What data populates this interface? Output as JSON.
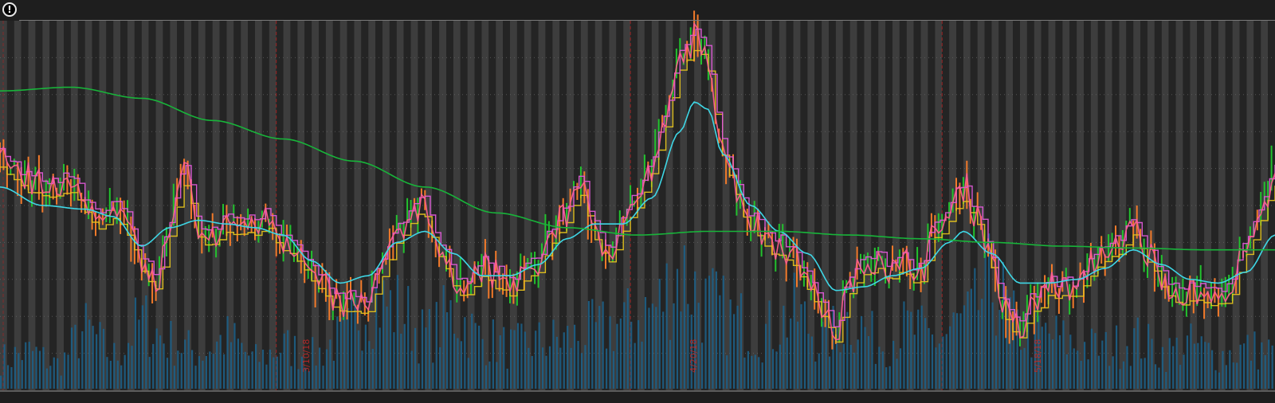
{
  "info_glyph": "!",
  "chart_data": {
    "type": "line",
    "title": "",
    "xlabel": "",
    "ylabel": "",
    "grid": true,
    "legend": "none",
    "date_markers": [
      "3/10/18",
      "4/20/18",
      "5/18/18"
    ],
    "colors": {
      "background": "#1e1e1e",
      "day_band_light": "#3d3d3d",
      "day_band_dark": "#242424",
      "price_green": "#22c22e",
      "price_orange": "#f27a2a",
      "price_pink": "#ff5f8f",
      "ma_magenta": "#e05ad8",
      "ma_yellow": "#e4c21c",
      "ma_cyan": "#3ed7e6",
      "ma_long_green": "#18b43a",
      "volume": "#1d5f86",
      "date_marker": "#b12020"
    },
    "x_range": [
      0,
      180
    ],
    "y_range": [
      0,
      100
    ],
    "price_keypoints": [
      [
        0,
        62
      ],
      [
        2,
        58
      ],
      [
        4,
        57
      ],
      [
        6,
        55
      ],
      [
        8,
        57
      ],
      [
        10,
        55
      ],
      [
        12,
        50
      ],
      [
        14,
        47
      ],
      [
        16,
        51
      ],
      [
        18,
        45
      ],
      [
        20,
        35
      ],
      [
        22,
        28
      ],
      [
        24,
        42
      ],
      [
        26,
        60
      ],
      [
        28,
        44
      ],
      [
        30,
        40
      ],
      [
        32,
        46
      ],
      [
        34,
        44
      ],
      [
        36,
        45
      ],
      [
        38,
        47
      ],
      [
        40,
        41
      ],
      [
        42,
        39
      ],
      [
        44,
        31
      ],
      [
        46,
        27
      ],
      [
        48,
        23
      ],
      [
        50,
        24
      ],
      [
        52,
        22
      ],
      [
        54,
        34
      ],
      [
        56,
        41
      ],
      [
        58,
        48
      ],
      [
        60,
        52
      ],
      [
        62,
        37
      ],
      [
        64,
        30
      ],
      [
        66,
        29
      ],
      [
        68,
        33
      ],
      [
        70,
        31
      ],
      [
        72,
        28
      ],
      [
        74,
        31
      ],
      [
        76,
        34
      ],
      [
        78,
        43
      ],
      [
        80,
        48
      ],
      [
        82,
        58
      ],
      [
        84,
        41
      ],
      [
        86,
        38
      ],
      [
        88,
        46
      ],
      [
        90,
        52
      ],
      [
        92,
        59
      ],
      [
        94,
        72
      ],
      [
        96,
        90
      ],
      [
        98,
        95
      ],
      [
        100,
        89
      ],
      [
        102,
        67
      ],
      [
        104,
        55
      ],
      [
        106,
        46
      ],
      [
        108,
        42
      ],
      [
        110,
        40
      ],
      [
        112,
        36
      ],
      [
        114,
        32
      ],
      [
        116,
        22
      ],
      [
        118,
        15
      ],
      [
        120,
        29
      ],
      [
        122,
        33
      ],
      [
        124,
        37
      ],
      [
        126,
        32
      ],
      [
        128,
        34
      ],
      [
        130,
        33
      ],
      [
        132,
        42
      ],
      [
        134,
        48
      ],
      [
        136,
        55
      ],
      [
        138,
        48
      ],
      [
        140,
        36
      ],
      [
        142,
        21
      ],
      [
        144,
        16
      ],
      [
        146,
        23
      ],
      [
        148,
        29
      ],
      [
        150,
        28
      ],
      [
        152,
        27
      ],
      [
        154,
        34
      ],
      [
        156,
        38
      ],
      [
        158,
        37
      ],
      [
        160,
        45
      ],
      [
        162,
        37
      ],
      [
        164,
        31
      ],
      [
        166,
        26
      ],
      [
        168,
        27
      ],
      [
        170,
        26
      ],
      [
        172,
        24
      ],
      [
        174,
        29
      ],
      [
        176,
        38
      ],
      [
        178,
        46
      ],
      [
        180,
        60
      ]
    ],
    "ma_short_keypoints": [
      [
        0,
        55
      ],
      [
        6,
        50
      ],
      [
        12,
        49
      ],
      [
        16,
        47
      ],
      [
        20,
        39
      ],
      [
        24,
        44
      ],
      [
        28,
        46
      ],
      [
        32,
        45
      ],
      [
        36,
        44
      ],
      [
        40,
        42
      ],
      [
        44,
        35
      ],
      [
        48,
        29
      ],
      [
        52,
        31
      ],
      [
        56,
        40
      ],
      [
        60,
        43
      ],
      [
        64,
        37
      ],
      [
        68,
        31
      ],
      [
        72,
        31
      ],
      [
        76,
        34
      ],
      [
        80,
        41
      ],
      [
        84,
        45
      ],
      [
        88,
        45
      ],
      [
        92,
        52
      ],
      [
        96,
        70
      ],
      [
        98,
        78
      ],
      [
        100,
        76
      ],
      [
        102,
        64
      ],
      [
        106,
        50
      ],
      [
        110,
        43
      ],
      [
        114,
        37
      ],
      [
        118,
        27
      ],
      [
        122,
        28
      ],
      [
        126,
        31
      ],
      [
        130,
        33
      ],
      [
        134,
        40
      ],
      [
        136,
        43
      ],
      [
        140,
        37
      ],
      [
        144,
        29
      ],
      [
        148,
        29
      ],
      [
        152,
        30
      ],
      [
        156,
        33
      ],
      [
        160,
        38
      ],
      [
        164,
        34
      ],
      [
        168,
        30
      ],
      [
        172,
        29
      ],
      [
        176,
        32
      ],
      [
        180,
        42
      ]
    ],
    "ma_long_keypoints": [
      [
        0,
        81
      ],
      [
        10,
        82
      ],
      [
        20,
        79
      ],
      [
        30,
        73
      ],
      [
        40,
        68
      ],
      [
        50,
        62
      ],
      [
        60,
        55
      ],
      [
        70,
        48
      ],
      [
        80,
        44
      ],
      [
        90,
        42
      ],
      [
        100,
        43
      ],
      [
        110,
        43
      ],
      [
        120,
        42
      ],
      [
        130,
        41
      ],
      [
        140,
        40
      ],
      [
        150,
        39
      ],
      [
        160,
        38.5
      ],
      [
        170,
        38
      ],
      [
        180,
        38
      ]
    ],
    "volume_range": [
      0,
      100
    ],
    "volume_keypoints": [
      [
        0,
        18
      ],
      [
        4,
        22
      ],
      [
        8,
        15
      ],
      [
        12,
        35
      ],
      [
        16,
        20
      ],
      [
        20,
        40
      ],
      [
        24,
        28
      ],
      [
        28,
        22
      ],
      [
        32,
        30
      ],
      [
        36,
        18
      ],
      [
        40,
        25
      ],
      [
        44,
        20
      ],
      [
        48,
        30
      ],
      [
        52,
        55
      ],
      [
        56,
        48
      ],
      [
        60,
        32
      ],
      [
        64,
        45
      ],
      [
        68,
        30
      ],
      [
        72,
        25
      ],
      [
        76,
        28
      ],
      [
        80,
        30
      ],
      [
        84,
        35
      ],
      [
        88,
        40
      ],
      [
        92,
        48
      ],
      [
        96,
        70
      ],
      [
        100,
        50
      ],
      [
        104,
        40
      ],
      [
        108,
        35
      ],
      [
        112,
        45
      ],
      [
        116,
        30
      ],
      [
        120,
        42
      ],
      [
        124,
        28
      ],
      [
        128,
        36
      ],
      [
        132,
        30
      ],
      [
        136,
        40
      ],
      [
        140,
        62
      ],
      [
        144,
        35
      ],
      [
        148,
        32
      ],
      [
        152,
        26
      ],
      [
        156,
        24
      ],
      [
        160,
        30
      ],
      [
        164,
        22
      ],
      [
        168,
        26
      ],
      [
        172,
        20
      ],
      [
        176,
        24
      ],
      [
        180,
        22
      ]
    ]
  }
}
